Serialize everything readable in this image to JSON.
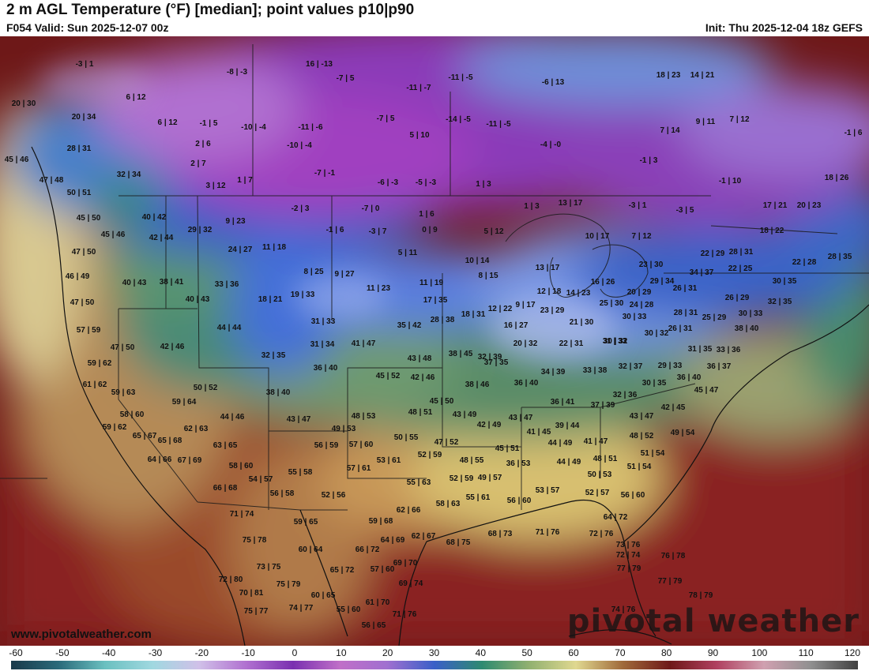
{
  "header": {
    "title": "2 m AGL Temperature (°F) [median]; point values p10|p90",
    "valid": "F054 Valid: Sun 2025-12-07 00z",
    "init": "Init: Thu 2025-12-04 18z GEFS"
  },
  "map": {
    "website": "www.pivotalweather.com",
    "watermark": "pivotal weather",
    "point_values": [
      "-3 | 1",
      "-8 | -3",
      "16 | -13",
      "-7 | 5",
      "-11 | -5",
      "-6 | 13",
      "18 | 23",
      "14 | 21",
      "20 | 30",
      "6 | 12",
      "-11 | -7",
      "20 | 34",
      "6 | 12",
      "-1 | 5",
      "-10 | -4",
      "-11 | -6",
      "-7 | 5",
      "-14 | -5",
      "-11 | -5",
      "9 | 11",
      "7 | 12",
      "28 | 31",
      "2 | 6",
      "-10 | -4",
      "5 | 10",
      "-4 | -0",
      "7 | 14",
      "-1 | 6",
      "45 | 46",
      "2 | 7",
      "-7 | -1",
      "-6 | -3",
      "-5 | -3",
      "1 | 3",
      "-1 | 3",
      "-1 | 10",
      "47 | 48",
      "32 | 34",
      "3 | 12",
      "1 | 7",
      "18 | 26",
      "50 | 51",
      "40 | 42",
      "9 | 23",
      "-2 | 3",
      "-7 | 0",
      "1 | 6",
      "1 | 3",
      "13 | 17",
      "-3 | 1",
      "-3 | 5",
      "17 | 21",
      "20 | 23",
      "45 | 50",
      "29 | 32",
      "-1 | 6",
      "-3 | 7",
      "0 | 9",
      "5 | 12",
      "18 | 22",
      "45 | 46",
      "42 | 44",
      "11 | 18",
      "24 | 27",
      "5 | 11",
      "10 | 17",
      "7 | 12",
      "47 | 50",
      "8 | 25",
      "9 | 27",
      "10 | 14",
      "13 | 17",
      "23 | 30",
      "22 | 29",
      "28 | 31",
      "22 | 28",
      "28 | 35",
      "46 | 49",
      "40 | 43",
      "38 | 41",
      "33 | 36",
      "11 | 23",
      "11 | 19",
      "8 | 15",
      "16 | 26",
      "29 | 34",
      "34 | 37",
      "22 | 25",
      "30 | 35",
      "47 | 50",
      "40 | 43",
      "18 | 21",
      "19 | 33",
      "17 | 35",
      "12 | 18",
      "14 | 23",
      "20 | 29",
      "26 | 31",
      "26 | 29",
      "32 | 35",
      "57 | 59",
      "44 | 44",
      "31 | 33",
      "35 | 42",
      "28 | 38",
      "18 | 31",
      "12 | 22",
      "9 | 17",
      "23 | 29",
      "25 | 30",
      "24 | 28",
      "28 | 31",
      "30 | 33",
      "25 | 29",
      "30 | 33",
      "47 | 50",
      "42 | 46",
      "31 | 34",
      "41 | 47",
      "16 | 27",
      "21 | 30",
      "30 | 32",
      "26 | 31",
      "38 | 40",
      "59 | 62",
      "32 | 35",
      "43 | 48",
      "38 | 45",
      "32 | 39",
      "20 | 32",
      "22 | 31",
      "31 | 33",
      "30 | 32",
      "31 | 35",
      "33 | 36",
      "61 | 62",
      "36 | 40",
      "45 | 52",
      "42 | 46",
      "37 | 35",
      "34 | 39",
      "33 | 38",
      "32 | 37",
      "29 | 33",
      "36 | 37",
      "59 | 63",
      "50 | 52",
      "38 | 40",
      "38 | 46",
      "36 | 40",
      "30 | 35",
      "36 | 40",
      "45 | 47",
      "58 | 60",
      "59 | 64",
      "44 | 46",
      "45 | 50",
      "48 | 51",
      "43 | 49",
      "36 | 41",
      "37 | 39",
      "32 | 36",
      "42 | 45",
      "59 | 62",
      "62 | 63",
      "43 | 47",
      "48 | 53",
      "42 | 49",
      "43 | 47",
      "39 | 44",
      "43 | 47",
      "49 | 54",
      "65 | 67",
      "65 | 68",
      "49 | 53",
      "50 | 55",
      "41 | 45",
      "41 | 47",
      "48 | 52",
      "64 | 66",
      "67 | 69",
      "63 | 65",
      "56 | 59",
      "57 | 60",
      "47 | 52",
      "45 | 51",
      "44 | 49",
      "51 | 54",
      "58 | 60",
      "53 | 61",
      "52 | 59",
      "48 | 55",
      "36 | 53",
      "44 | 49",
      "48 | 51",
      "51 | 54",
      "54 | 57",
      "55 | 58",
      "57 | 61",
      "55 | 63",
      "52 | 59",
      "49 | 57",
      "50 | 53",
      "66 | 68",
      "56 | 58",
      "52 | 56",
      "53 | 57",
      "52 | 57",
      "56 | 60",
      "58 | 63",
      "55 | 61",
      "56 | 60",
      "71 | 74",
      "59 | 65",
      "59 | 68",
      "62 | 66",
      "64 | 72",
      "75 | 78",
      "60 | 64",
      "66 | 72",
      "64 | 69",
      "62 | 67",
      "68 | 75",
      "68 | 73",
      "71 | 76",
      "72 | 76",
      "73 | 76",
      "73 | 75",
      "69 | 70",
      "72 | 74",
      "76 | 78",
      "72 | 80",
      "65 | 72",
      "57 | 60",
      "77 | 79",
      "75 | 79",
      "69 | 74",
      "77 | 79",
      "70 | 81",
      "60 | 65",
      "61 | 70",
      "78 | 79",
      "75 | 77",
      "74 | 77",
      "55 | 60",
      "71 | 76",
      "74 | 76",
      "56 | 65"
    ]
  },
  "colorbar": {
    "ticks": [
      "-60",
      "-50",
      "-40",
      "-30",
      "-20",
      "-10",
      "0",
      "10",
      "20",
      "30",
      "40",
      "50",
      "60",
      "70",
      "80",
      "90",
      "100",
      "110",
      "120"
    ]
  }
}
